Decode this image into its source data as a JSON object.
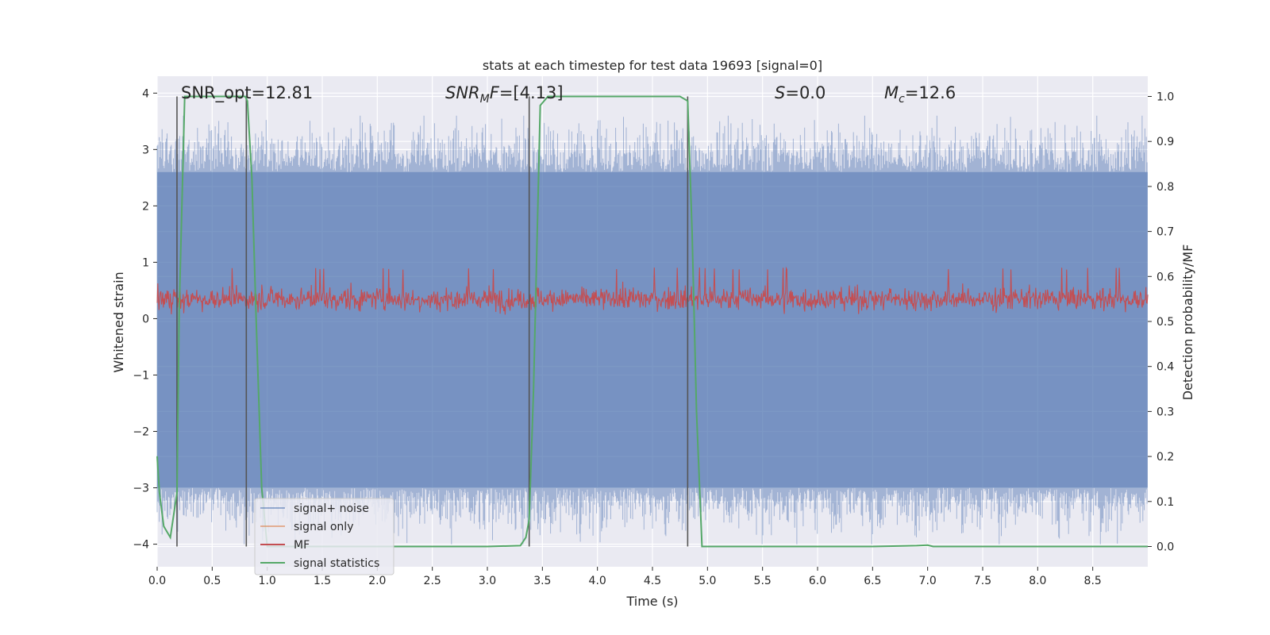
{
  "chart_data": {
    "type": "line",
    "title": "stats at each timestep for test data 19693 [signal=0]",
    "xlabel": "Time (s)",
    "ylabel": "Whitened strain",
    "y2label": "Detection probability/MF",
    "xlim": [
      0.0,
      9.0
    ],
    "ylim": [
      -4.4,
      4.3
    ],
    "y2lim": [
      -0.045,
      1.045
    ],
    "xticks": [
      0.0,
      0.5,
      1.0,
      1.5,
      2.0,
      2.5,
      3.0,
      3.5,
      4.0,
      4.5,
      5.0,
      5.5,
      6.0,
      6.5,
      7.0,
      7.5,
      8.0,
      8.5
    ],
    "xtick_labels": [
      "0.0",
      "0.5",
      "1.0",
      "1.5",
      "2.0",
      "2.5",
      "3.0",
      "3.5",
      "4.0",
      "4.5",
      "5.0",
      "5.5",
      "6.0",
      "6.5",
      "7.0",
      "7.5",
      "8.0",
      "8.5"
    ],
    "yticks": [
      -4,
      -3,
      -2,
      -1,
      0,
      1,
      2,
      3,
      4
    ],
    "ytick_labels": [
      "−4",
      "−3",
      "−2",
      "−1",
      "0",
      "1",
      "2",
      "3",
      "4"
    ],
    "y2ticks": [
      0.0,
      0.1,
      0.2,
      0.3,
      0.4,
      0.5,
      0.6,
      0.7,
      0.8,
      0.9,
      1.0
    ],
    "y2tick_labels": [
      "0.0",
      "0.1",
      "0.2",
      "0.3",
      "0.4",
      "0.5",
      "0.6",
      "0.7",
      "0.8",
      "0.9",
      "1.0"
    ],
    "annotations": {
      "snr_opt": "SNR_opt=12.81",
      "snr_mf_name": "SNR",
      "snr_mf_sub": "M",
      "snr_mf_suffix": "F",
      "snr_mf_value": "=[4.13]",
      "s_name": "S",
      "s_value": "=0.0",
      "mc_name": "M",
      "mc_sub": "c",
      "mc_value": "=12.6"
    },
    "vertical_markers": [
      0.18,
      0.81,
      3.38,
      4.82
    ],
    "noise_band": {
      "y_min": -3.0,
      "y_max": 2.6,
      "spike_min": -4.0,
      "spike_max": 3.6
    },
    "mf_band": {
      "center": 0.55,
      "y_min": 0.5,
      "y_max": 0.6,
      "spike_max": 0.62
    },
    "series": [
      {
        "name": "signal+ noise",
        "color": "#4c72b0"
      },
      {
        "name": "signal only",
        "color": "#dd8452"
      },
      {
        "name": "MF",
        "color": "#c44e52"
      },
      {
        "name": "signal statistics",
        "color": "#55a868",
        "x": [
          0.0,
          0.02,
          0.06,
          0.12,
          0.18,
          0.2,
          0.25,
          0.3,
          0.5,
          0.8,
          0.82,
          0.86,
          0.9,
          0.95,
          1.0,
          1.5,
          2.0,
          2.5,
          3.0,
          3.3,
          3.35,
          3.38,
          3.42,
          3.48,
          3.55,
          4.0,
          4.5,
          4.75,
          4.82,
          4.86,
          4.9,
          4.95,
          5.5,
          6.0,
          6.5,
          6.9,
          7.0,
          7.05,
          7.5,
          8.0,
          8.5,
          9.0
        ],
        "values": [
          0.2,
          0.12,
          0.045,
          0.02,
          0.12,
          0.52,
          1.0,
          1.0,
          1.0,
          1.0,
          0.99,
          0.82,
          0.5,
          0.13,
          0.0,
          0.0,
          0.0,
          0.0,
          0.0,
          0.002,
          0.02,
          0.06,
          0.35,
          0.98,
          1.0,
          1.0,
          1.0,
          1.0,
          0.99,
          0.7,
          0.3,
          0.0,
          0.0,
          0.0,
          0.0,
          0.002,
          0.003,
          0.0,
          0.0,
          0.0,
          0.0,
          0.0
        ]
      }
    ],
    "legend_position": "lower-left"
  }
}
